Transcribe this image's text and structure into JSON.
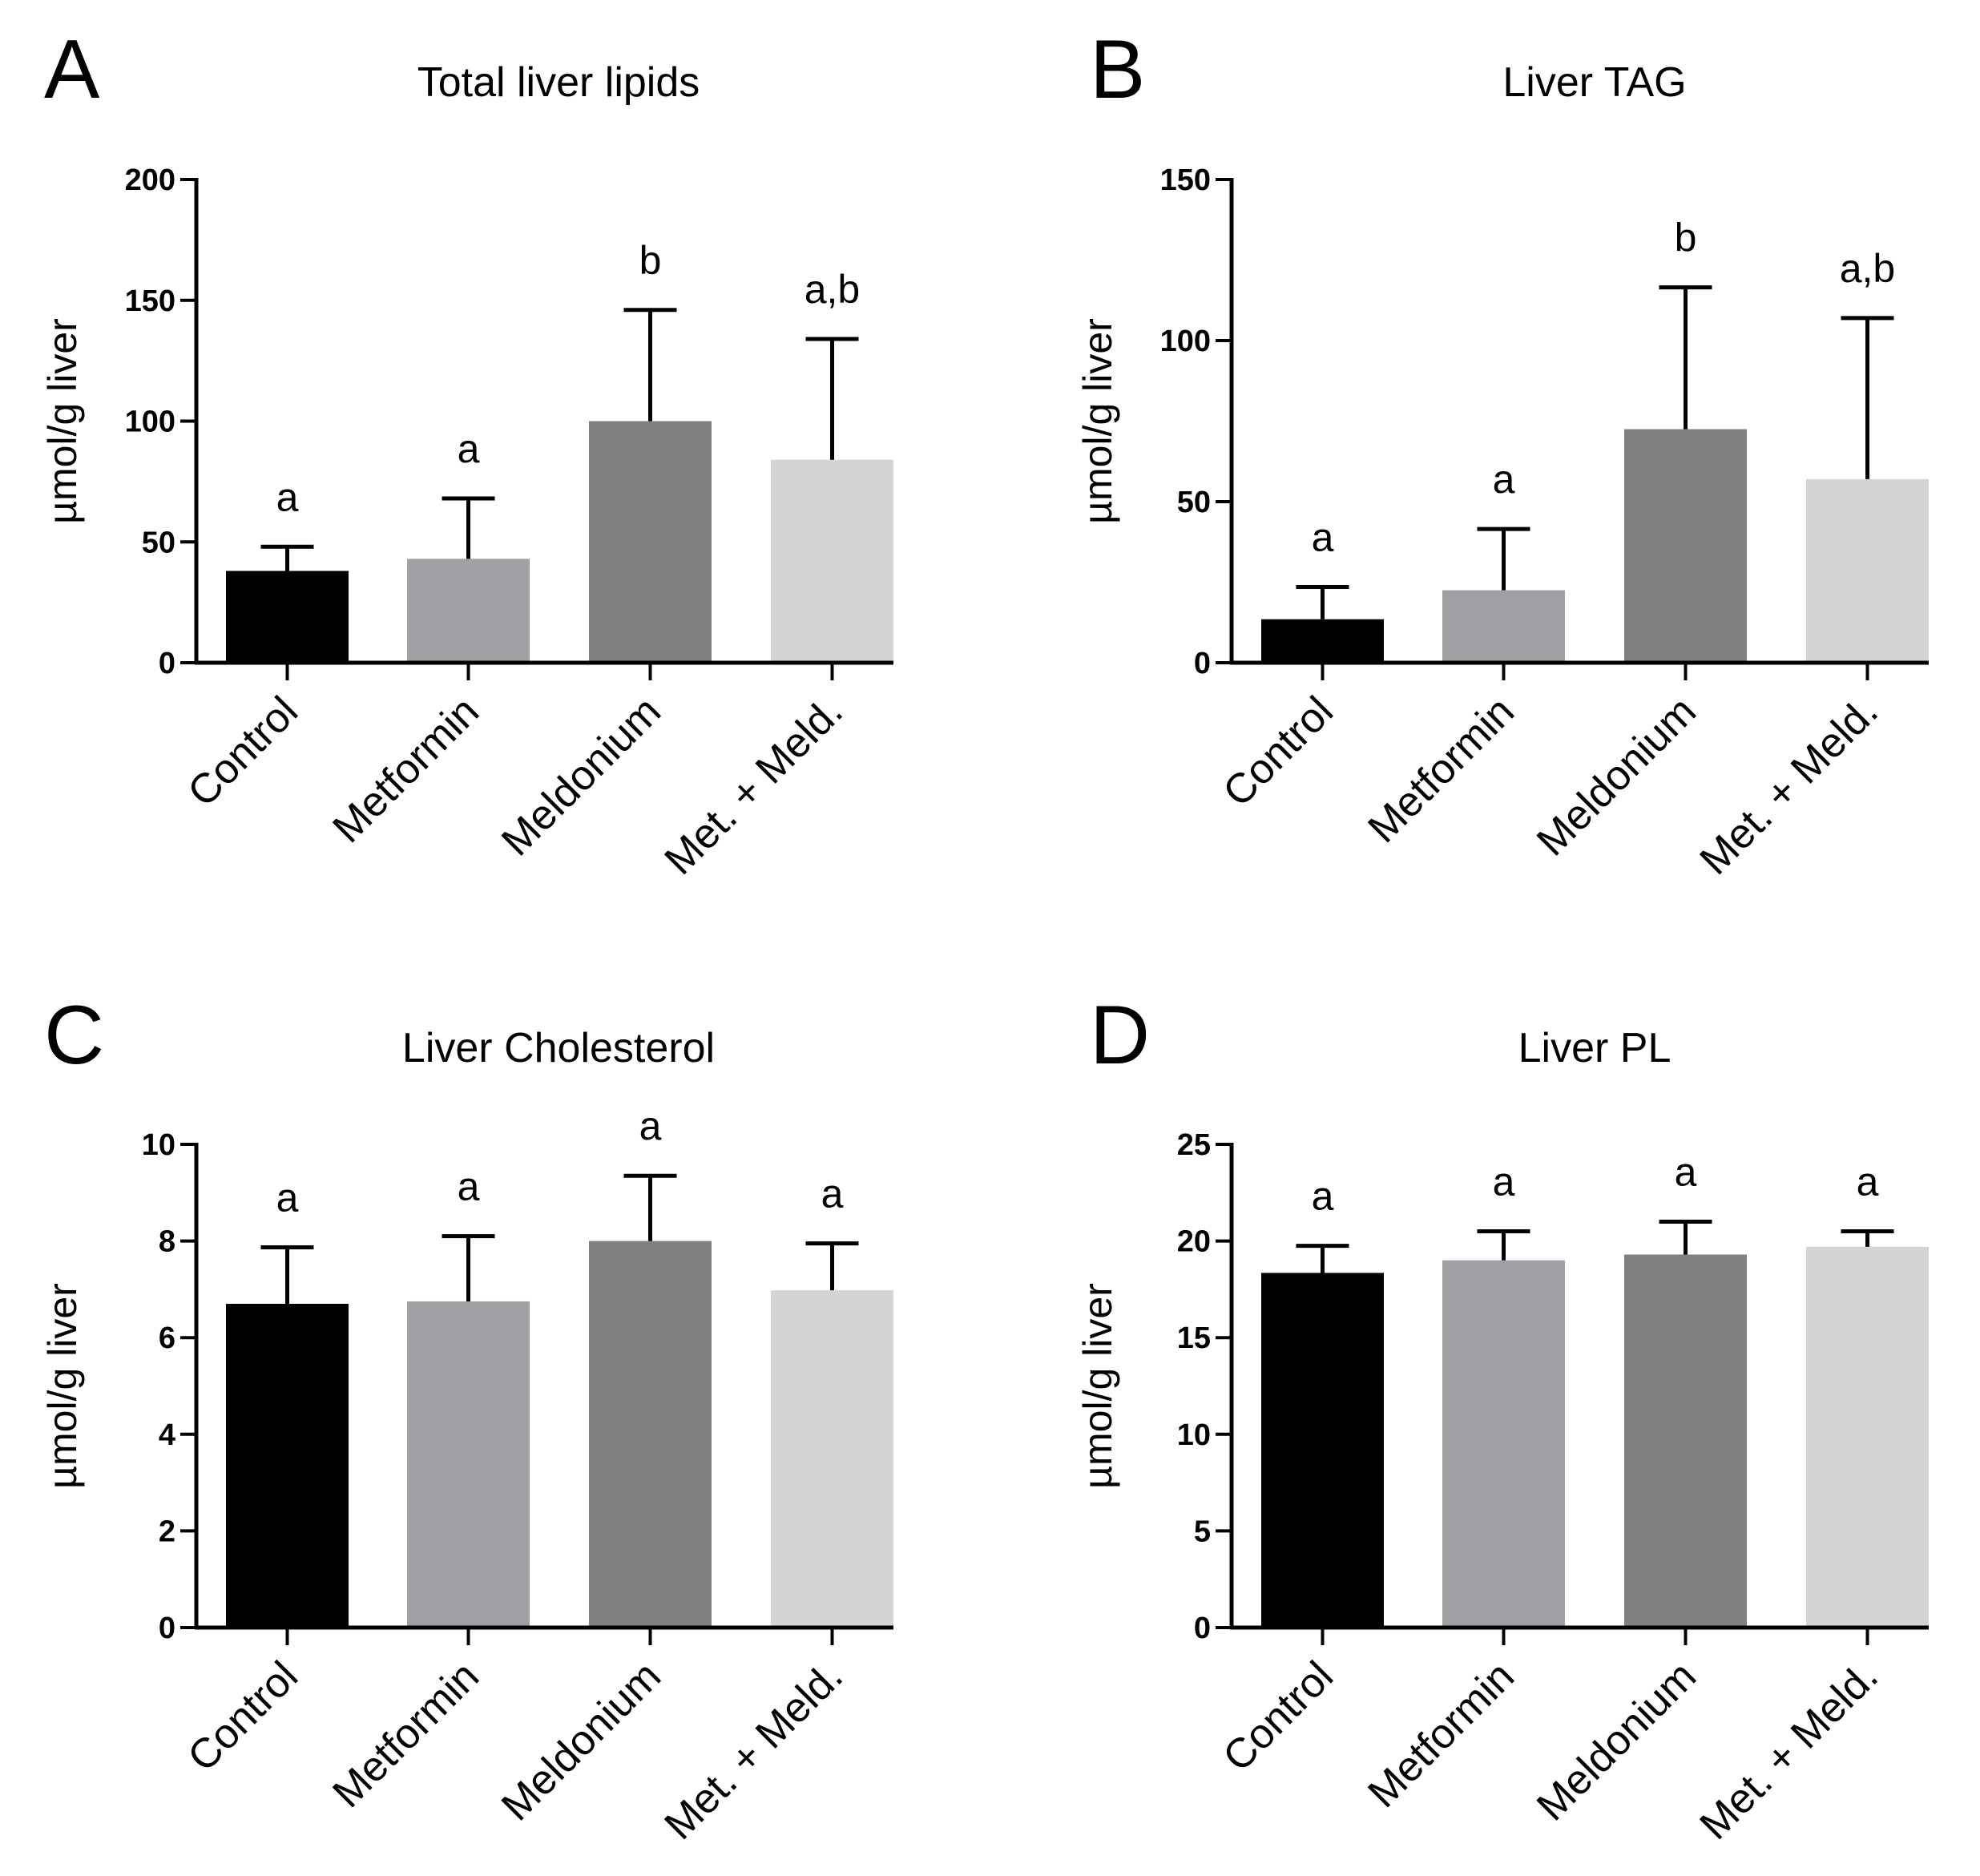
{
  "chart_data": [
    {
      "panel": "A",
      "type": "bar",
      "title": "Total liver lipids",
      "ylabel": "µmol/g liver",
      "xlabel": "",
      "categories": [
        "Control",
        "Metformin",
        "Meldonium",
        "Met. + Meld."
      ],
      "values": [
        38,
        43,
        100,
        84
      ],
      "errors": [
        10,
        25,
        46,
        50
      ],
      "significance": [
        "a",
        "a",
        "b",
        "a,b"
      ],
      "ylim": [
        0,
        200
      ],
      "yticks": [
        0,
        50,
        100,
        150,
        200
      ],
      "colors": [
        "#000000",
        "#a0a0a4",
        "#808080",
        "#d4d4d4"
      ]
    },
    {
      "panel": "B",
      "type": "bar",
      "title": "Liver TAG",
      "ylabel": "µmol/g liver",
      "xlabel": "",
      "categories": [
        "Control",
        "Metformin",
        "Meldonium",
        "Met. + Meld."
      ],
      "values": [
        13.5,
        22.5,
        72.5,
        57
      ],
      "errors": [
        10,
        19,
        44,
        50
      ],
      "significance": [
        "a",
        "a",
        "b",
        "a,b"
      ],
      "ylim": [
        0,
        150
      ],
      "yticks": [
        0,
        50,
        100,
        150
      ],
      "colors": [
        "#000000",
        "#a0a0a4",
        "#808080",
        "#d4d4d4"
      ]
    },
    {
      "panel": "C",
      "type": "bar",
      "title": "Liver Cholesterol",
      "ylabel": "µmol/g liver",
      "xlabel": "",
      "categories": [
        "Control",
        "Metformin",
        "Meldonium",
        "Met. + Meld."
      ],
      "values": [
        6.7,
        6.75,
        8.0,
        6.98
      ],
      "errors": [
        1.17,
        1.35,
        1.35,
        0.97
      ],
      "significance": [
        "a",
        "a",
        "a",
        "a"
      ],
      "ylim": [
        0,
        10
      ],
      "yticks": [
        0,
        2,
        4,
        6,
        8,
        10
      ],
      "colors": [
        "#000000",
        "#a0a0a4",
        "#808080",
        "#d4d4d4"
      ]
    },
    {
      "panel": "D",
      "type": "bar",
      "title": "Liver PL",
      "ylabel": "µmol/g liver",
      "xlabel": "",
      "categories": [
        "Control",
        "Metformin",
        "Meldonium",
        "Met. + Meld."
      ],
      "values": [
        18.35,
        19.0,
        19.3,
        19.7
      ],
      "errors": [
        1.4,
        1.5,
        1.7,
        0.8
      ],
      "significance": [
        "a",
        "a",
        "a",
        "a"
      ],
      "ylim": [
        0,
        25
      ],
      "yticks": [
        0,
        5,
        10,
        15,
        20,
        25
      ],
      "colors": [
        "#000000",
        "#a0a0a4",
        "#808080",
        "#d4d4d4"
      ]
    }
  ]
}
